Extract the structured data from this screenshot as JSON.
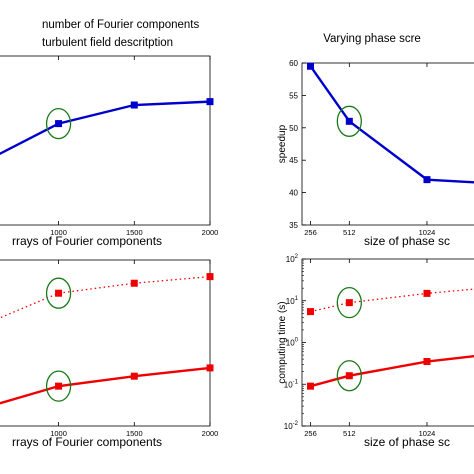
{
  "chart_data": [
    {
      "type": "line",
      "title_lines": [
        "number of Fourier components",
        "turbulent field descritption"
      ],
      "xlabel": "rrays of Fourier components",
      "ylabel": "",
      "x": [
        500,
        1000,
        1500,
        2000
      ],
      "xticks": [
        "1000",
        "1500",
        "2000"
      ],
      "xtick_values": [
        1000,
        1500,
        2000
      ],
      "xlim": [
        600,
        2000
      ],
      "ylim": [
        0,
        1
      ],
      "highlight_x": 1000,
      "series": [
        {
          "values": [
            0.37,
            0.6,
            0.71,
            0.73
          ],
          "color": "#0000cc",
          "style": "solid"
        }
      ]
    },
    {
      "type": "line",
      "title_lines": [
        "Varying phase scre"
      ],
      "xlabel": "size of phase sc",
      "ylabel": "speedup",
      "x": [
        256,
        512,
        1024,
        1400
      ],
      "xticks": [
        "256",
        "512",
        "1024"
      ],
      "xtick_values": [
        256,
        512,
        1024
      ],
      "xlim": [
        200,
        1400
      ],
      "ylim": [
        35,
        60
      ],
      "yticks": [
        "35",
        "40",
        "45",
        "50",
        "55",
        "60"
      ],
      "ytick_values": [
        35,
        40,
        45,
        50,
        55,
        60
      ],
      "highlight_x": 512,
      "series": [
        {
          "values": [
            59.5,
            51,
            42,
            41.5
          ],
          "color": "#0000cc",
          "style": "solid"
        }
      ]
    },
    {
      "type": "line",
      "xlabel": "rrays of Fourier components",
      "ylabel": "",
      "x": [
        400,
        1000,
        1500,
        2000
      ],
      "xticks": [
        "1000",
        "1500",
        "2000"
      ],
      "xtick_values": [
        1000,
        1500,
        2000
      ],
      "xlim": [
        600,
        2000
      ],
      "ylim": [
        0,
        1
      ],
      "highlight_x": 1000,
      "series": [
        {
          "values": [
            0.57,
            0.8,
            0.86,
            0.9
          ],
          "color": "#ee0000",
          "style": "dotted"
        },
        {
          "values": [
            0.08,
            0.24,
            0.3,
            0.35
          ],
          "color": "#ee0000",
          "style": "solid"
        }
      ]
    },
    {
      "type": "line",
      "xlabel": "size of phase sc",
      "ylabel": "computing time (s)",
      "yscale": "log",
      "x": [
        256,
        512,
        1024,
        1400
      ],
      "xticks": [
        "256",
        "512",
        "1024"
      ],
      "xtick_values": [
        256,
        512,
        1024
      ],
      "xlim": [
        200,
        1400
      ],
      "ylim": [
        0.01,
        100
      ],
      "ytick_exponents": [
        "-2",
        "-1",
        "0",
        "1",
        "2"
      ],
      "ytick_values": [
        0.01,
        0.1,
        1,
        10,
        100
      ],
      "highlight_x": 512,
      "series": [
        {
          "values": [
            5.5,
            9,
            15,
            20
          ],
          "color": "#ee0000",
          "style": "dotted"
        },
        {
          "values": [
            0.09,
            0.16,
            0.35,
            0.5
          ],
          "color": "#ee0000",
          "style": "solid"
        }
      ]
    }
  ],
  "colors": {
    "axes": "#000000",
    "highlight": "#1a7a1a",
    "background": "#ffffff"
  }
}
